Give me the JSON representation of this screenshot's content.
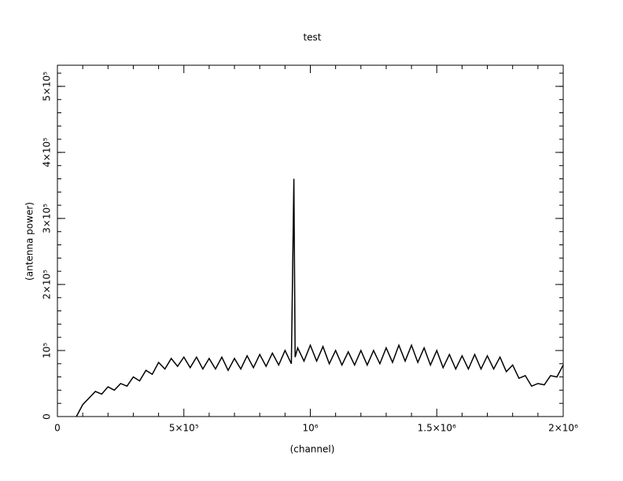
{
  "chart_data": {
    "type": "line",
    "title": "test",
    "x_label": "(channel)",
    "y_label": "(antenna power)",
    "color": "#000000",
    "x": [
      75000,
      100000,
      125000,
      150000,
      175000,
      200000,
      225000,
      250000,
      275000,
      300000,
      325000,
      350000,
      375000,
      400000,
      425000,
      450000,
      475000,
      500000,
      525000,
      550000,
      575000,
      600000,
      625000,
      650000,
      675000,
      700000,
      725000,
      750000,
      775000,
      800000,
      825000,
      850000,
      875000,
      900000,
      925000,
      935000,
      940000,
      950000,
      975000,
      1000000,
      1025000,
      1050000,
      1075000,
      1100000,
      1125000,
      1150000,
      1175000,
      1200000,
      1225000,
      1250000,
      1275000,
      1300000,
      1325000,
      1350000,
      1375000,
      1400000,
      1425000,
      1450000,
      1475000,
      1500000,
      1525000,
      1550000,
      1575000,
      1600000,
      1625000,
      1650000,
      1675000,
      1700000,
      1725000,
      1750000,
      1775000,
      1800000,
      1825000,
      1850000,
      1875000,
      1900000,
      1925000,
      1950000,
      1975000,
      2000000
    ],
    "values": [
      0,
      18000,
      28000,
      38000,
      34000,
      45000,
      40000,
      50000,
      46000,
      60000,
      54000,
      70000,
      64000,
      82000,
      72000,
      88000,
      76000,
      90000,
      74000,
      90000,
      72000,
      88000,
      72000,
      90000,
      70000,
      88000,
      72000,
      92000,
      74000,
      94000,
      76000,
      96000,
      78000,
      100000,
      80000,
      360000,
      90000,
      104000,
      84000,
      108000,
      84000,
      106000,
      80000,
      100000,
      78000,
      98000,
      78000,
      100000,
      78000,
      100000,
      80000,
      104000,
      82000,
      108000,
      84000,
      108000,
      82000,
      104000,
      78000,
      100000,
      74000,
      94000,
      72000,
      92000,
      72000,
      94000,
      72000,
      92000,
      72000,
      90000,
      68000,
      78000,
      58000,
      62000,
      46000,
      50000,
      48000,
      62000,
      60000,
      78000
    ],
    "xlim": [
      0,
      2000000
    ],
    "ylim": [
      0,
      532000
    ],
    "xticks": [
      0,
      {
        "value": 500000,
        "label": "5×10⁵"
      },
      {
        "value": 1000000,
        "label": "10⁶"
      },
      {
        "value": 1500000,
        "label": "1.5×10⁶"
      },
      {
        "value": 2000000,
        "label": "2×10⁶"
      }
    ],
    "yticks": [
      0,
      {
        "value": 100000,
        "label": "10⁵"
      },
      {
        "value": 200000,
        "label": "2×10⁵"
      },
      {
        "value": 300000,
        "label": "3×10⁵"
      },
      {
        "value": 400000,
        "label": "4×10⁵"
      },
      {
        "value": 500000,
        "label": "5×10⁵"
      }
    ]
  }
}
